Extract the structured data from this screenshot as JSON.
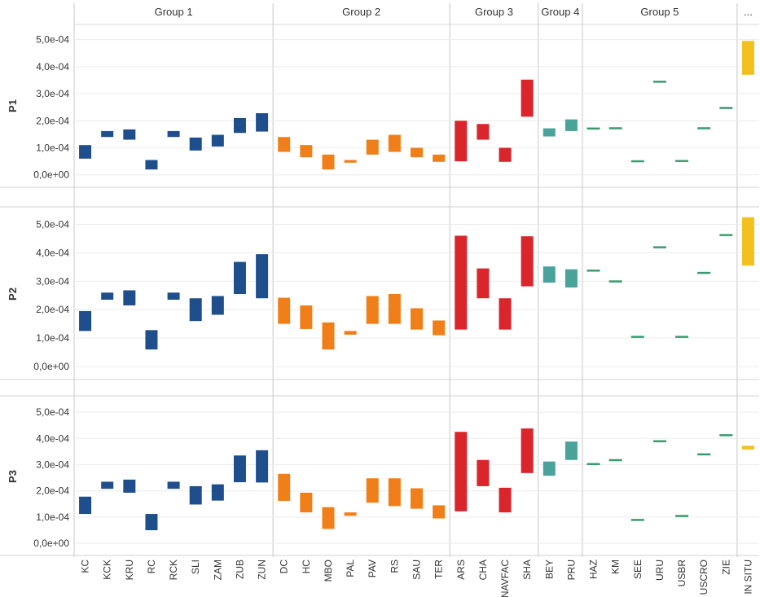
{
  "chart_data": {
    "type": "floating-bar",
    "ylim": [
      -4e-05,
      0.00055
    ],
    "y_ticks": [
      "0,0e+00",
      "1,0e-04",
      "2,0e-04",
      "3,0e-04",
      "4,0e-04",
      "5,0e-04"
    ],
    "y_tick_values": [
      0,
      0.0001,
      0.0002,
      0.0003,
      0.0004,
      0.0005
    ],
    "groups": [
      {
        "name": "Group 1",
        "color": "#1f4e8c",
        "categories": [
          "KC",
          "KCK",
          "KRU",
          "RC",
          "RCK",
          "SLI",
          "ZAM",
          "ZUB",
          "ZUN"
        ]
      },
      {
        "name": "Group 2",
        "color": "#f07f19",
        "categories": [
          "DC",
          "HC",
          "MBO",
          "PAL",
          "PAV",
          "RS",
          "SAU",
          "TER"
        ]
      },
      {
        "name": "Group 3",
        "color": "#d9252b",
        "categories": [
          "ARS",
          "CHA",
          "NAVFAC",
          "SHA"
        ]
      },
      {
        "name": "Group 4",
        "color": "#4aa39a",
        "categories": [
          "BEY",
          "PRU"
        ]
      },
      {
        "name": "Group 5",
        "color": "#3a9a6e",
        "categories": [
          "HAZ",
          "KM",
          "SEE",
          "URU",
          "USBR",
          "USCRO",
          "ZIE"
        ]
      },
      {
        "name": "...",
        "color": "#f2c01f",
        "categories": [
          "IN SITU"
        ]
      }
    ],
    "panels": [
      {
        "name": "P1",
        "ranges": [
          [
            6e-05,
            0.00011
          ],
          [
            0.00014,
            0.000162
          ],
          [
            0.00013,
            0.000168
          ],
          [
            2e-05,
            5.5e-05
          ],
          [
            0.00014,
            0.000162
          ],
          [
            9e-05,
            0.000138
          ],
          [
            0.000105,
            0.000148
          ],
          [
            0.000155,
            0.00021
          ],
          [
            0.00016,
            0.000228
          ],
          [
            8.5e-05,
            0.00014
          ],
          [
            6.5e-05,
            0.00011
          ],
          [
            2e-05,
            7.5e-05
          ],
          [
            4.5e-05,
            5.5e-05
          ],
          [
            7.5e-05,
            0.00013
          ],
          [
            8.5e-05,
            0.000148
          ],
          [
            6.5e-05,
            0.0001
          ],
          [
            4.8e-05,
            7.5e-05
          ],
          [
            5e-05,
            0.0002
          ],
          [
            0.00013,
            0.000188
          ],
          [
            4.8e-05,
            0.0001
          ],
          [
            0.000215,
            0.000352
          ],
          [
            0.000142,
            0.000172
          ],
          [
            0.000162,
            0.000205
          ],
          [
            0.000172,
            0.000172
          ],
          [
            0.000173,
            0.000173
          ],
          [
            5.1e-05,
            5.1e-05
          ],
          [
            0.000345,
            0.000345
          ],
          [
            5.2e-05,
            5.2e-05
          ],
          [
            0.000173,
            0.000173
          ],
          [
            0.000248,
            0.000248
          ],
          [
            0.00037,
            0.000495
          ]
        ]
      },
      {
        "name": "P2",
        "ranges": [
          [
            0.000125,
            0.000195
          ],
          [
            0.000235,
            0.00026
          ],
          [
            0.000215,
            0.000268
          ],
          [
            6e-05,
            0.000128
          ],
          [
            0.000235,
            0.00026
          ],
          [
            0.00016,
            0.00024
          ],
          [
            0.000182,
            0.000248
          ],
          [
            0.000255,
            0.000368
          ],
          [
            0.00024,
            0.000395
          ],
          [
            0.00015,
            0.000242
          ],
          [
            0.000132,
            0.000215
          ],
          [
            6e-05,
            0.000155
          ],
          [
            0.000112,
            0.000125
          ],
          [
            0.00015,
            0.000248
          ],
          [
            0.00015,
            0.000255
          ],
          [
            0.00013,
            0.000205
          ],
          [
            0.00011,
            0.000162
          ],
          [
            0.00013,
            0.00046
          ],
          [
            0.00024,
            0.000345
          ],
          [
            0.00013,
            0.00024
          ],
          [
            0.000282,
            0.000458
          ],
          [
            0.000295,
            0.000352
          ],
          [
            0.000278,
            0.000342
          ],
          [
            0.000338,
            0.000338
          ],
          [
            0.0003,
            0.0003
          ],
          [
            0.000105,
            0.000105
          ],
          [
            0.00042,
            0.00042
          ],
          [
            0.000105,
            0.000105
          ],
          [
            0.00033,
            0.00033
          ],
          [
            0.000463,
            0.000463
          ],
          [
            0.000355,
            0.000525
          ]
        ]
      },
      {
        "name": "P3",
        "ranges": [
          [
            0.000112,
            0.000178
          ],
          [
            0.000208,
            0.000235
          ],
          [
            0.000193,
            0.000243
          ],
          [
            5e-05,
            0.000112
          ],
          [
            0.000208,
            0.000235
          ],
          [
            0.000148,
            0.000218
          ],
          [
            0.000163,
            0.000225
          ],
          [
            0.000233,
            0.000335
          ],
          [
            0.000232,
            0.000355
          ],
          [
            0.000162,
            0.000265
          ],
          [
            0.000118,
            0.000193
          ],
          [
            5.5e-05,
            0.000138
          ],
          [
            0.000105,
            0.000118
          ],
          [
            0.000155,
            0.000248
          ],
          [
            0.000142,
            0.000248
          ],
          [
            0.000132,
            0.00021
          ],
          [
            9.5e-05,
            0.000145
          ],
          [
            0.000122,
            0.000425
          ],
          [
            0.000218,
            0.000318
          ],
          [
            0.000118,
            0.000212
          ],
          [
            0.000268,
            0.000438
          ],
          [
            0.000258,
            0.000312
          ],
          [
            0.000318,
            0.000388
          ],
          [
            0.000303,
            0.000303
          ],
          [
            0.000318,
            0.000318
          ],
          [
            9e-05,
            9e-05
          ],
          [
            0.00039,
            0.00039
          ],
          [
            0.000105,
            0.000105
          ],
          [
            0.00034,
            0.00034
          ],
          [
            0.000413,
            0.000413
          ],
          [
            0.000358,
            0.000372
          ]
        ]
      }
    ]
  }
}
